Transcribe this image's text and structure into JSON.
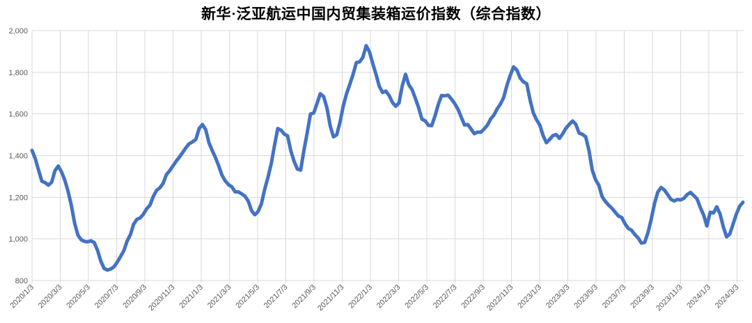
{
  "page": {
    "background_color": "#ffffff"
  },
  "chart_data": {
    "type": "line",
    "title": "新华·泛亚航运中国内贸集装箱运价指数（综合指数）",
    "title_color": "#000000",
    "legend": "none",
    "grid": "horizontal-and-vertical",
    "grid_color": "#D9D9D9",
    "axis_label_color": "#595959",
    "ylim": [
      800,
      2000
    ],
    "y_tick_values": [
      2000,
      1800,
      1600,
      1400,
      1200,
      1000,
      800
    ],
    "y_tick_labels": [
      "2,000",
      "1,800",
      "1,600",
      "1,400",
      "1,200",
      "1,000",
      "800"
    ],
    "x_tick_labels": [
      "2020/1/3",
      "2020/3/3",
      "2020/5/3",
      "2020/7/3",
      "2020/9/3",
      "2020/11/3",
      "2021/1/3",
      "2021/3/3",
      "2021/5/3",
      "2021/7/3",
      "2021/9/3",
      "2021/11/3",
      "2022/1/3",
      "2022/3/3",
      "2022/5/3",
      "2022/7/3",
      "2022/9/3",
      "2022/11/3",
      "2023/1/3",
      "2023/3/3",
      "2023/5/3",
      "2023/7/3",
      "2023/9/3",
      "2023/11/3",
      "2024/1/3",
      "2024/3/3"
    ],
    "series": [
      {
        "name": "综合指数",
        "color": "#4472C4",
        "line_width": 5,
        "frequency": "weekly",
        "x_start": "2020/1/3",
        "x_end": "2024/3/15",
        "values": [
          1425,
          1385,
          1330,
          1277,
          1270,
          1258,
          1272,
          1327,
          1350,
          1322,
          1282,
          1228,
          1160,
          1075,
          1018,
          996,
          988,
          986,
          991,
          982,
          945,
          893,
          858,
          850,
          855,
          866,
          888,
          915,
          942,
          988,
          1020,
          1070,
          1094,
          1101,
          1119,
          1145,
          1162,
          1203,
          1233,
          1245,
          1266,
          1308,
          1327,
          1350,
          1373,
          1393,
          1415,
          1438,
          1457,
          1466,
          1478,
          1530,
          1549,
          1525,
          1462,
          1424,
          1390,
          1350,
          1305,
          1278,
          1260,
          1250,
          1226,
          1226,
          1216,
          1205,
          1182,
          1136,
          1116,
          1131,
          1168,
          1238,
          1295,
          1360,
          1448,
          1530,
          1522,
          1503,
          1495,
          1423,
          1372,
          1335,
          1330,
          1425,
          1510,
          1600,
          1605,
          1650,
          1697,
          1683,
          1630,
          1543,
          1490,
          1500,
          1560,
          1638,
          1697,
          1742,
          1790,
          1847,
          1850,
          1872,
          1928,
          1898,
          1843,
          1790,
          1733,
          1703,
          1710,
          1688,
          1655,
          1637,
          1652,
          1735,
          1790,
          1740,
          1717,
          1675,
          1630,
          1575,
          1567,
          1545,
          1544,
          1590,
          1645,
          1688,
          1687,
          1690,
          1672,
          1650,
          1623,
          1585,
          1547,
          1549,
          1528,
          1505,
          1513,
          1512,
          1528,
          1546,
          1576,
          1595,
          1625,
          1648,
          1680,
          1739,
          1786,
          1826,
          1810,
          1772,
          1754,
          1745,
          1668,
          1605,
          1572,
          1546,
          1496,
          1462,
          1478,
          1496,
          1501,
          1483,
          1505,
          1532,
          1550,
          1566,
          1550,
          1508,
          1502,
          1490,
          1424,
          1330,
          1284,
          1258,
          1203,
          1180,
          1162,
          1147,
          1128,
          1110,
          1103,
          1073,
          1050,
          1042,
          1021,
          1005,
          980,
          983,
          1030,
          1095,
          1170,
          1225,
          1247,
          1235,
          1213,
          1190,
          1182,
          1189,
          1187,
          1195,
          1213,
          1223,
          1208,
          1192,
          1150,
          1115,
          1062,
          1128,
          1125,
          1154,
          1120,
          1058,
          1010,
          1024,
          1072,
          1120,
          1157,
          1176
        ]
      }
    ]
  }
}
